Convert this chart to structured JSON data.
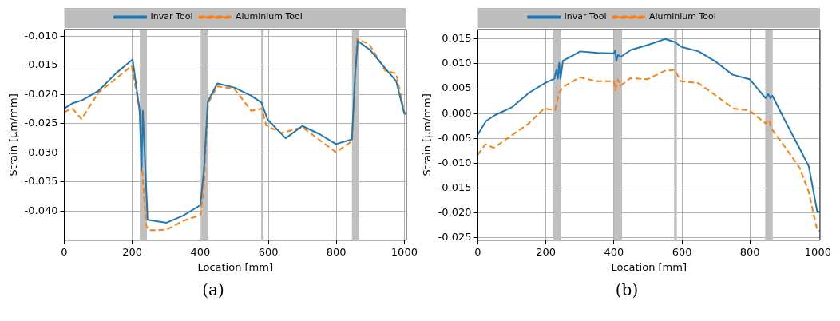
{
  "chart_data": [
    {
      "type": "line",
      "xlabel": "Location [mm]",
      "ylabel": "Strain [μm/mm]",
      "annotations": [
        "(a)"
      ],
      "xlim": [
        0,
        1006
      ],
      "xticks": [
        0,
        200,
        400,
        600,
        800,
        1000
      ],
      "ylim": [
        -0.045,
        -0.00885
      ],
      "yticks": [
        {
          "value": -0.04,
          "label": "-0.040"
        },
        {
          "value": -0.035,
          "label": "-0.035"
        },
        {
          "value": -0.03,
          "label": "-0.030"
        },
        {
          "value": -0.025,
          "label": "-0.025"
        },
        {
          "value": -0.02,
          "label": "-0.020"
        },
        {
          "value": -0.015,
          "label": "-0.015"
        },
        {
          "value": -0.01,
          "label": "-0.010"
        }
      ],
      "grid": true,
      "legend": "top",
      "marker": "none",
      "bands": [
        {
          "axis": "x",
          "from": 222,
          "to": 243,
          "color": "#bfbfbf"
        },
        {
          "axis": "x",
          "from": 401,
          "to": 424,
          "color": "#bfbfbf"
        },
        {
          "axis": "x",
          "from": 579,
          "to": 586,
          "color": "#bfbfbf"
        },
        {
          "axis": "x",
          "from": 846,
          "to": 867,
          "color": "#bfbfbf"
        }
      ],
      "series": [
        {
          "name": "Invar Tool",
          "color": "#1f77b4",
          "line_style": "solid",
          "x": [
            0,
            24,
            52,
            100,
            153,
            201,
            222,
            227,
            231,
            245,
            301,
            349,
            400,
            411,
            422,
            450,
            500,
            550,
            580,
            598,
            651,
            700,
            751,
            799,
            846,
            855,
            863,
            900,
            944,
            976,
            1000,
            1006
          ],
          "values": [
            -0.0224,
            -0.0215,
            -0.021,
            -0.0194,
            -0.0163,
            -0.014,
            -0.023,
            -0.033,
            -0.0228,
            -0.0415,
            -0.042,
            -0.0408,
            -0.039,
            -0.0328,
            -0.0212,
            -0.0181,
            -0.0188,
            -0.0202,
            -0.0214,
            -0.0243,
            -0.0275,
            -0.0254,
            -0.0268,
            -0.0285,
            -0.0277,
            -0.0168,
            -0.0108,
            -0.0124,
            -0.0155,
            -0.0177,
            -0.0233,
            -0.0233
          ]
        },
        {
          "name": "Aluminium Tool",
          "color": "#ff7f0e",
          "line_style": "dashed",
          "x": [
            0,
            24,
            51,
            100,
            198,
            221,
            231,
            241,
            249,
            301,
            349,
            400,
            410,
            423,
            450,
            500,
            550,
            581,
            594,
            640,
            700,
            799,
            846,
            861,
            896,
            944,
            976,
            1000,
            1006
          ],
          "values": [
            -0.023,
            -0.0224,
            -0.0242,
            -0.0197,
            -0.0151,
            -0.0224,
            -0.0346,
            -0.0425,
            -0.0433,
            -0.0432,
            -0.0417,
            -0.0407,
            -0.0364,
            -0.0215,
            -0.0186,
            -0.019,
            -0.0228,
            -0.0224,
            -0.0253,
            -0.0266,
            -0.0256,
            -0.0299,
            -0.028,
            -0.0105,
            -0.0113,
            -0.0159,
            -0.0164,
            -0.023,
            -0.0233
          ]
        }
      ]
    },
    {
      "type": "line",
      "xlabel": "Location [mm]",
      "ylabel": "Strain [μm/mm]",
      "annotations": [
        "(b)"
      ],
      "xlim": [
        0,
        1006
      ],
      "xticks": [
        0,
        200,
        400,
        600,
        800,
        1000
      ],
      "ylim": [
        -0.0255,
        0.0169
      ],
      "yticks": [
        {
          "value": -0.025,
          "label": "-0.025"
        },
        {
          "value": -0.02,
          "label": "-0.020"
        },
        {
          "value": -0.015,
          "label": "-0.015"
        },
        {
          "value": -0.01,
          "label": "-0.010"
        },
        {
          "value": -0.005,
          "label": "-0.005"
        },
        {
          "value": 0,
          "label": "0.000"
        },
        {
          "value": 0.005,
          "label": "0.005"
        },
        {
          "value": 0.01,
          "label": "0.010"
        },
        {
          "value": 0.015,
          "label": "0.015"
        }
      ],
      "grid": true,
      "legend": "top",
      "marker": "none",
      "bands": [
        {
          "axis": "x",
          "from": 222,
          "to": 245,
          "color": "#bfbfbf"
        },
        {
          "axis": "x",
          "from": 400,
          "to": 424,
          "color": "#bfbfbf"
        },
        {
          "axis": "x",
          "from": 577,
          "to": 585,
          "color": "#bfbfbf"
        },
        {
          "axis": "x",
          "from": 845,
          "to": 867,
          "color": "#bfbfbf"
        }
      ],
      "series": [
        {
          "name": "Invar Tool",
          "color": "#1f77b4",
          "line_style": "solid",
          "x": [
            0,
            24,
            51,
            101,
            151,
            199,
            225,
            231,
            235,
            239,
            243,
            250,
            301,
            352,
            400,
            404,
            407,
            412,
            420,
            450,
            500,
            550,
            578,
            599,
            649,
            700,
            749,
            799,
            846,
            854,
            860,
            866,
            906,
            946,
            973,
            998,
            1006
          ],
          "values": [
            -0.0042,
            -0.0015,
            -0.0003,
            0.0013,
            0.0042,
            0.0062,
            0.007,
            0.0088,
            0.007,
            0.0102,
            0.007,
            0.0106,
            0.0125,
            0.0122,
            0.0121,
            0.0127,
            0.0106,
            0.0118,
            0.0114,
            0.0128,
            0.0138,
            0.015,
            0.0144,
            0.0134,
            0.0125,
            0.0104,
            0.0078,
            0.0069,
            0.0031,
            0.0039,
            0.0031,
            0.0036,
            -0.0018,
            -0.007,
            -0.0106,
            -0.0198,
            -0.0198
          ]
        },
        {
          "name": "Aluminium Tool",
          "color": "#ff7f0e",
          "line_style": "dashed",
          "x": [
            0,
            22,
            47,
            95,
            148,
            195,
            227,
            239,
            250,
            300,
            348,
            400,
            404,
            412,
            420,
            448,
            499,
            550,
            578,
            597,
            649,
            700,
            752,
            799,
            846,
            856,
            864,
            906,
            946,
            973,
            998,
            1006
          ],
          "values": [
            -0.0083,
            -0.0062,
            -0.0069,
            -0.0046,
            -0.0021,
            0.001,
            0.0007,
            0.0042,
            0.0053,
            0.0073,
            0.0065,
            0.0065,
            0.0047,
            0.0068,
            0.0056,
            0.0071,
            0.0069,
            0.0086,
            0.0088,
            0.0065,
            0.0061,
            0.0036,
            0.001,
            0.0006,
            -0.002,
            -0.0012,
            -0.0031,
            -0.007,
            -0.0109,
            -0.0158,
            -0.0235,
            -0.0236
          ]
        }
      ]
    }
  ]
}
